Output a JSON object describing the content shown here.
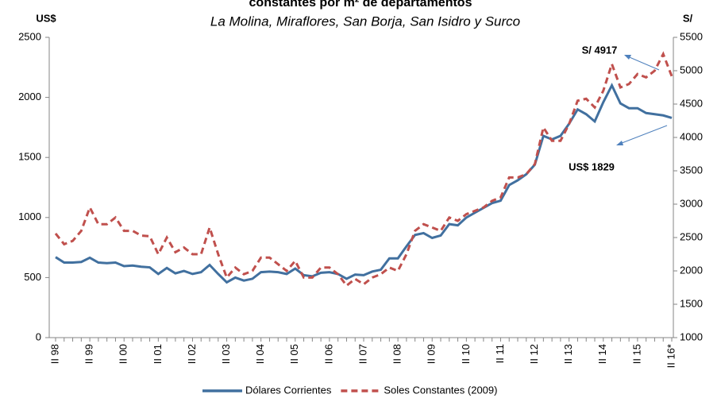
{
  "chart_data": {
    "type": "line",
    "title": "constantes por m² de departamentos",
    "subtitle": "La Molina, Miraflores, San Borja, San Isidro y Surco",
    "y_label": "US$",
    "y2_label": "S/",
    "categories": [
      "II 98",
      null,
      null,
      null,
      "II 99",
      null,
      null,
      null,
      "II 00",
      null,
      null,
      null,
      "II 01",
      null,
      null,
      null,
      "II 02",
      null,
      null,
      null,
      "II 03",
      null,
      null,
      null,
      "II 04",
      null,
      null,
      null,
      "II 05",
      null,
      null,
      null,
      "II 06",
      null,
      null,
      null,
      "II 07",
      null,
      null,
      null,
      "II 08",
      null,
      null,
      null,
      "II 09",
      null,
      null,
      null,
      "II 10",
      null,
      null,
      null,
      "II 11",
      null,
      null,
      null,
      "II 12",
      null,
      null,
      null,
      "II 13",
      null,
      null,
      null,
      "II 14",
      null,
      null,
      null,
      "II 15",
      null,
      null,
      null,
      "II 16*"
    ],
    "series": [
      {
        "name": "Dólares Corrientes",
        "color": "#41709f",
        "dash": false,
        "values": [
          670,
          625,
          625,
          630,
          665,
          625,
          620,
          625,
          595,
          600,
          590,
          585,
          530,
          580,
          535,
          555,
          530,
          545,
          605,
          530,
          460,
          500,
          475,
          490,
          545,
          550,
          545,
          530,
          575,
          520,
          510,
          540,
          545,
          530,
          490,
          525,
          520,
          550,
          565,
          660,
          660,
          760,
          855,
          870,
          830,
          850,
          945,
          935,
          1000,
          1040,
          1080,
          1120,
          1140,
          1270,
          1310,
          1360,
          1440,
          1680,
          1650,
          1680,
          1780,
          1900,
          1860,
          1800,
          1960,
          2100,
          1950,
          1910,
          1910,
          1870,
          1860,
          1850,
          1829
        ]
      },
      {
        "name": "Soles Constantes (2009)",
        "color": "#c0504d",
        "dash": true,
        "axis": "y2",
        "values": [
          2560,
          2400,
          2450,
          2600,
          2950,
          2700,
          2700,
          2800,
          2600,
          2600,
          2530,
          2520,
          2250,
          2500,
          2280,
          2350,
          2250,
          2250,
          2650,
          2250,
          1900,
          2050,
          1950,
          2000,
          2200,
          2200,
          2100,
          2000,
          2150,
          1900,
          1900,
          2050,
          2050,
          1950,
          1780,
          1880,
          1800,
          1900,
          1950,
          2050,
          2000,
          2250,
          2600,
          2700,
          2650,
          2600,
          2800,
          2750,
          2850,
          2900,
          2950,
          3050,
          3100,
          3400,
          3400,
          3450,
          3600,
          4150,
          3950,
          3950,
          4200,
          4550,
          4580,
          4450,
          4700,
          5100,
          4750,
          4800,
          4950,
          4900,
          5000,
          5250,
          4917
        ]
      }
    ],
    "ylim": [
      0,
      2500
    ],
    "yticks": [
      0,
      500,
      1000,
      1500,
      2000,
      2500
    ],
    "y2lim": [
      1000,
      5500
    ],
    "y2ticks": [
      1000,
      1500,
      2000,
      2500,
      3000,
      3500,
      4000,
      4500,
      5000,
      5500
    ],
    "annotations": [
      "S/ 4917",
      "US$ 1829"
    ],
    "legend": "bottom"
  }
}
